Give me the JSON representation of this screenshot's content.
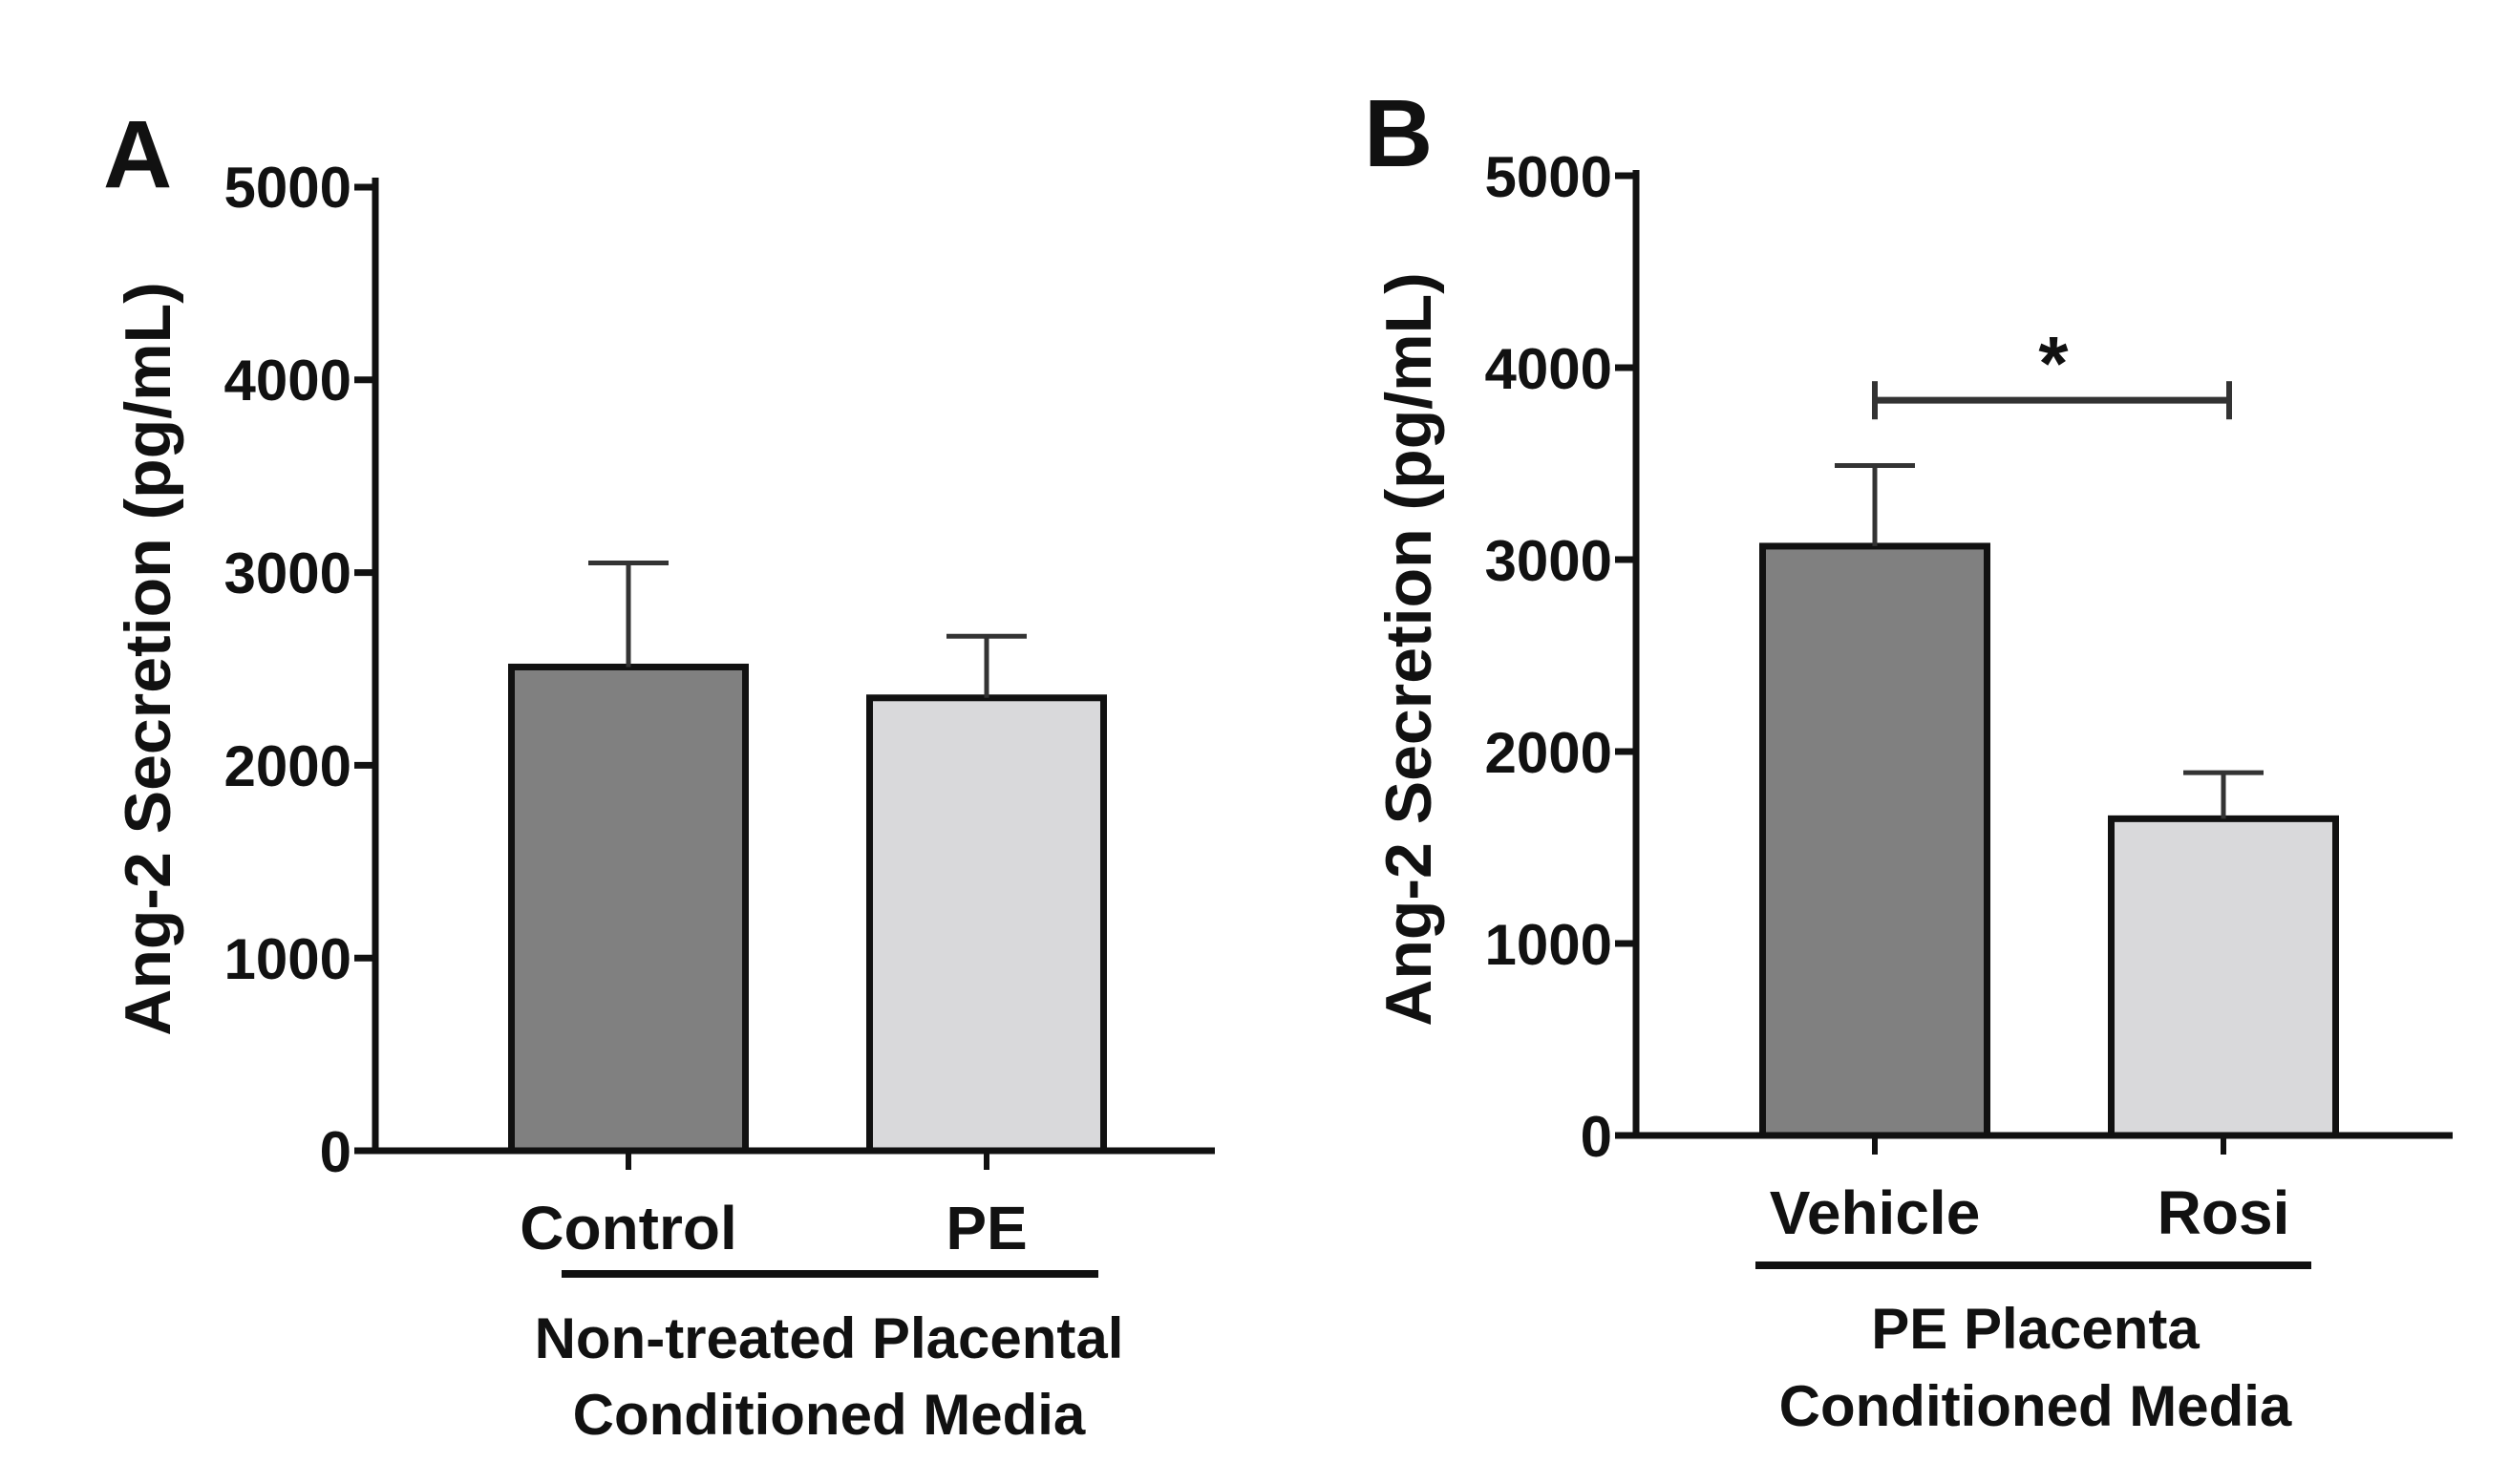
{
  "chart_data": [
    {
      "type": "bar",
      "panel": "A",
      "ylabel": "Ang-2 Secretion (pg/mL)",
      "ylim": [
        0,
        5000
      ],
      "yticks": [
        "0",
        "1000",
        "2000",
        "3000",
        "4000",
        "5000"
      ],
      "categories": [
        "Control",
        "PE"
      ],
      "values": [
        2510,
        2350
      ],
      "errors": [
        540,
        320
      ],
      "colors": [
        "#808080",
        "#d9d9db"
      ],
      "group_label": [
        "Non-treated Placental",
        "Conditioned Media"
      ],
      "significance": null
    },
    {
      "type": "bar",
      "panel": "B",
      "ylabel": "Ang-2 Secretion (pg/mL)",
      "ylim": [
        0,
        5000
      ],
      "yticks": [
        "0",
        "1000",
        "2000",
        "3000",
        "4000",
        "5000"
      ],
      "categories": [
        "Vehicle",
        "Rosi"
      ],
      "values": [
        3070,
        1650
      ],
      "errors": [
        420,
        240
      ],
      "colors": [
        "#808080",
        "#d9d9db"
      ],
      "group_label": [
        "PE Placenta",
        "Conditioned Media"
      ],
      "significance": {
        "label": "*",
        "y": 3830,
        "between": [
          0,
          1
        ]
      }
    }
  ]
}
